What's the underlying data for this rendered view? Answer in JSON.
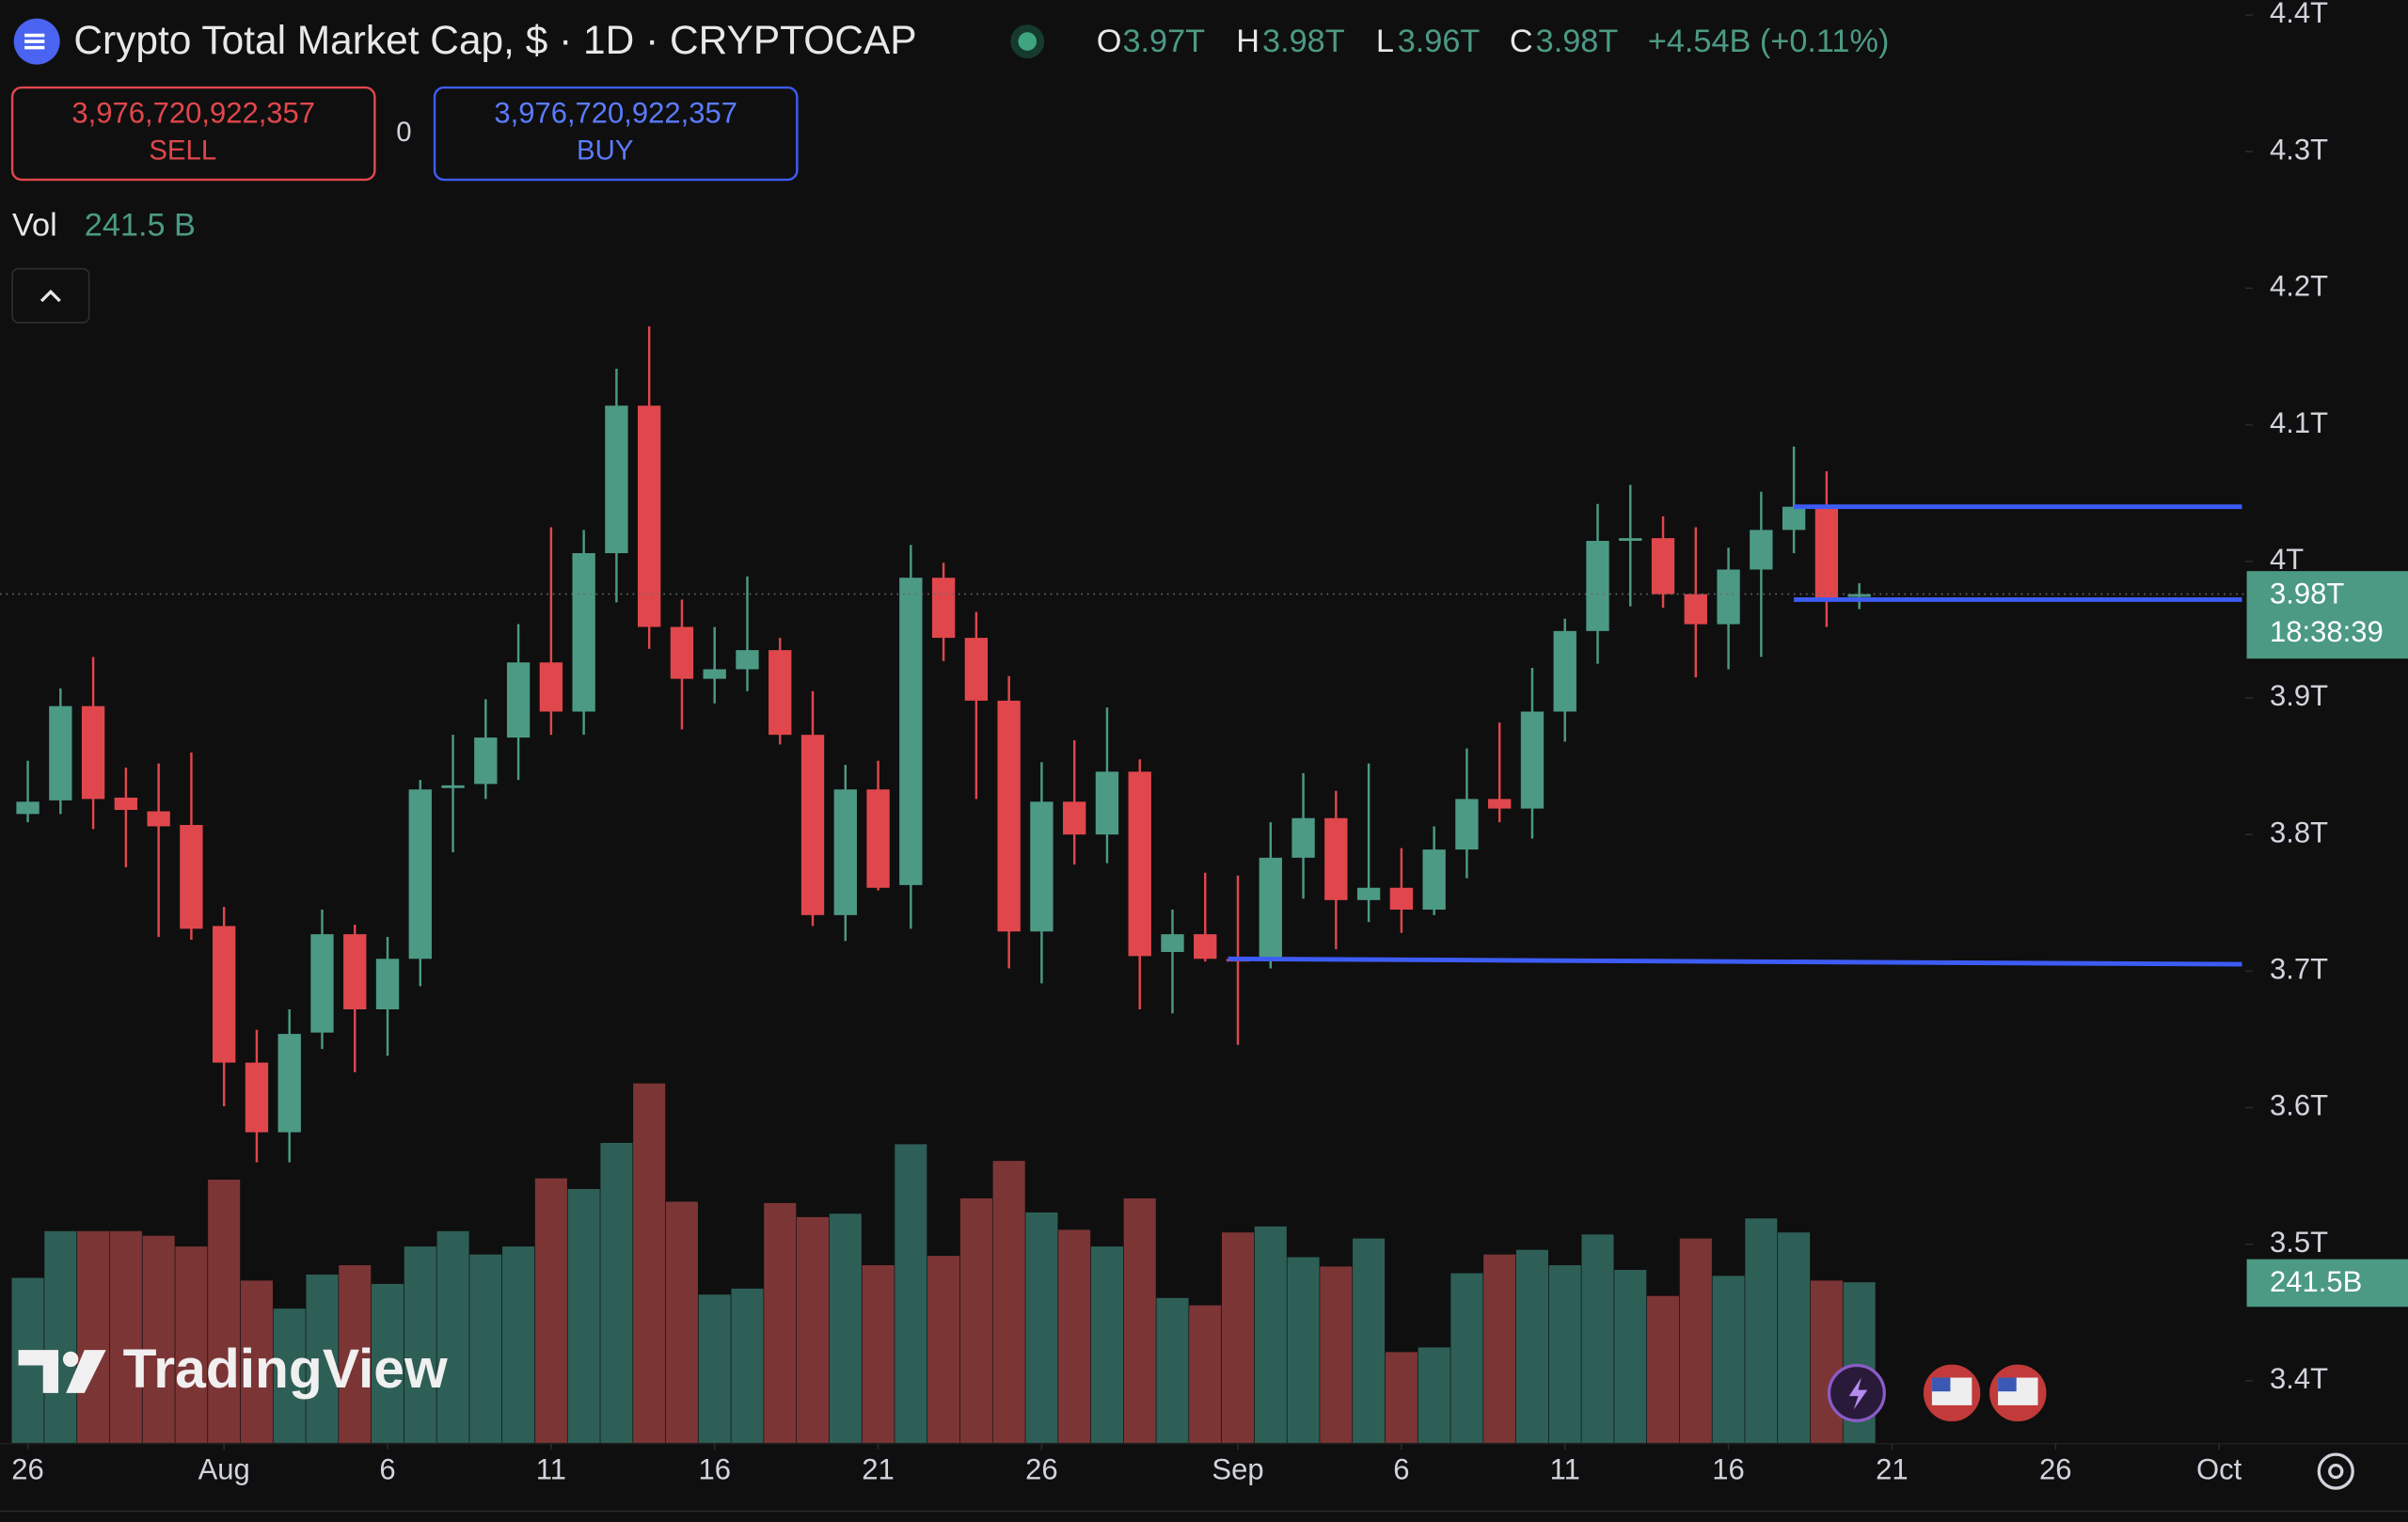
{
  "chart_data": {
    "type": "candlestick",
    "title": "Crypto Total Market Cap, $ · 1D · CRYPTOCAP",
    "ohlc_header": [
      {
        "label": "O",
        "value": "3.97T"
      },
      {
        "label": "H",
        "value": "3.98T"
      },
      {
        "label": "L",
        "value": "3.96T"
      },
      {
        "label": "C",
        "value": "3.98T"
      }
    ],
    "change": "+4.54B (+0.11%)",
    "sell": {
      "price": "3,976,720,922,357",
      "label": "SELL"
    },
    "spread": "0",
    "buy": {
      "price": "3,976,720,922,357",
      "label": "BUY"
    },
    "volume_label": "Vol",
    "volume_value": "241.5 B",
    "price_tag": {
      "price": "3.98T",
      "countdown": "18:38:39"
    },
    "volume_tag": "241.5B",
    "watermark": "TradingView",
    "up_color": "#4c9a84",
    "down_color": "#e0474c",
    "volume_up_color": "#2e5f56",
    "volume_down_color": "#7c3535",
    "open": [
      3.815,
      3.825,
      3.894,
      3.827,
      3.817,
      3.807,
      3.733,
      3.633,
      3.582,
      3.655,
      3.727,
      3.672,
      3.709,
      3.834,
      3.837,
      3.871,
      3.926,
      3.89,
      4.006,
      4.114,
      3.952,
      3.914,
      3.921,
      3.935,
      3.873,
      3.741,
      3.833,
      3.763,
      3.988,
      3.944,
      3.898,
      3.729,
      3.824,
      3.8,
      3.846,
      3.714,
      3.727,
      3.709,
      3.709,
      3.783,
      3.812,
      3.752,
      3.761,
      3.745,
      3.789,
      3.826,
      3.819,
      3.89,
      3.949,
      4.015,
      4.017,
      3.976,
      3.954,
      3.994,
      4.023,
      4.04,
      3.974
    ],
    "high": [
      3.854,
      3.907,
      3.93,
      3.849,
      3.852,
      3.86,
      3.747,
      3.657,
      3.672,
      3.745,
      3.734,
      3.725,
      3.84,
      3.873,
      3.899,
      3.954,
      4.025,
      4.023,
      4.141,
      4.172,
      3.972,
      3.952,
      3.989,
      3.944,
      3.905,
      3.851,
      3.854,
      4.012,
      3.999,
      3.963,
      3.916,
      3.853,
      3.869,
      3.893,
      3.855,
      3.745,
      3.772,
      3.77,
      3.809,
      3.845,
      3.832,
      3.852,
      3.79,
      3.806,
      3.863,
      3.882,
      3.922,
      3.958,
      4.042,
      4.056,
      4.033,
      4.025,
      4.01,
      4.051,
      4.084,
      4.066,
      3.984
    ],
    "low": [
      3.809,
      3.815,
      3.804,
      3.776,
      3.725,
      3.723,
      3.601,
      3.56,
      3.56,
      3.643,
      3.626,
      3.638,
      3.689,
      3.787,
      3.826,
      3.84,
      3.873,
      3.873,
      3.97,
      3.936,
      3.877,
      3.896,
      3.905,
      3.866,
      3.733,
      3.722,
      3.759,
      3.731,
      3.927,
      3.826,
      3.702,
      3.691,
      3.778,
      3.779,
      3.672,
      3.669,
      3.707,
      3.646,
      3.702,
      3.753,
      3.716,
      3.736,
      3.728,
      3.741,
      3.768,
      3.809,
      3.797,
      3.868,
      3.925,
      3.967,
      3.966,
      3.915,
      3.921,
      3.93,
      4.006,
      3.952,
      3.965
    ],
    "close": [
      3.824,
      3.894,
      3.826,
      3.818,
      3.806,
      3.731,
      3.633,
      3.582,
      3.654,
      3.727,
      3.672,
      3.709,
      3.833,
      3.836,
      3.871,
      3.926,
      3.89,
      4.006,
      4.114,
      3.952,
      3.914,
      3.921,
      3.935,
      3.873,
      3.741,
      3.833,
      3.761,
      3.988,
      3.944,
      3.898,
      3.729,
      3.824,
      3.8,
      3.846,
      3.711,
      3.727,
      3.709,
      3.707,
      3.783,
      3.812,
      3.752,
      3.761,
      3.745,
      3.789,
      3.826,
      3.819,
      3.89,
      3.949,
      4.015,
      4.017,
      3.976,
      3.954,
      3.994,
      4.023,
      4.04,
      3.972,
      3.976
    ],
    "volume": [
      248,
      318,
      318,
      318,
      311,
      295,
      395,
      244,
      202,
      253,
      267,
      239,
      295,
      318,
      283,
      295,
      397,
      381,
      450,
      539,
      362,
      223,
      232,
      360,
      339,
      344,
      267,
      448,
      281,
      367,
      423,
      346,
      320,
      295,
      367,
      218,
      207,
      316,
      325,
      279,
      265,
      307,
      137,
      144,
      255,
      283,
      290,
      267,
      313,
      260,
      221,
      307,
      251,
      337,
      316,
      244,
      241.5
    ],
    "xlim": [
      -0.85,
      67.8
    ],
    "ylim": [
      3.354,
      4.411
    ],
    "vlim": [
      0,
      2160
    ],
    "xticks": [
      {
        "value": 0,
        "label": "26"
      },
      {
        "value": 6,
        "label": "Aug"
      },
      {
        "value": 11,
        "label": "6"
      },
      {
        "value": 16,
        "label": "11"
      },
      {
        "value": 21,
        "label": "16"
      },
      {
        "value": 26,
        "label": "21"
      },
      {
        "value": 31,
        "label": "26"
      },
      {
        "value": 37,
        "label": "Sep"
      },
      {
        "value": 42,
        "label": "6"
      },
      {
        "value": 47,
        "label": "11"
      },
      {
        "value": 52,
        "label": "16"
      },
      {
        "value": 57,
        "label": "21"
      },
      {
        "value": 62,
        "label": "26"
      },
      {
        "value": 67,
        "label": "Oct"
      }
    ],
    "yticks": [
      {
        "value": 3.4,
        "label": "3.4T"
      },
      {
        "value": 3.5,
        "label": "3.5T"
      },
      {
        "value": 3.6,
        "label": "3.6T"
      },
      {
        "value": 3.7,
        "label": "3.7T"
      },
      {
        "value": 3.8,
        "label": "3.8T"
      },
      {
        "value": 3.9,
        "label": "3.9T"
      },
      {
        "value": 4.0,
        "label": "4T"
      },
      {
        "value": 4.1,
        "label": "4.1T"
      },
      {
        "value": 4.2,
        "label": "4.2T"
      },
      {
        "value": 4.3,
        "label": "4.3T"
      },
      {
        "value": 4.4,
        "label": "4.4T"
      }
    ],
    "drawings": [
      {
        "x": [
          54,
          67.7
        ],
        "y": [
          4.04,
          4.04
        ],
        "color": "#3d5cf5"
      },
      {
        "x": [
          54,
          67.7
        ],
        "y": [
          3.972,
          3.972
        ],
        "color": "#3d5cf5"
      },
      {
        "x": [
          36.7,
          67.7
        ],
        "y": [
          3.709,
          3.705
        ],
        "color": "#3d5cf5"
      }
    ]
  }
}
